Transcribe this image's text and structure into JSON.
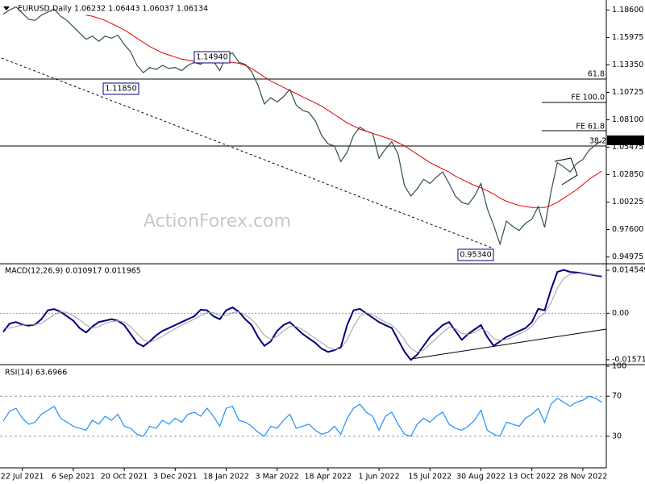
{
  "chart_data": [
    {
      "type": "line",
      "title": "EURUSD,Daily  1.06232 1.06443 1.06037 1.06134",
      "watermark": "ActionForex.com",
      "ylim": [
        0.944,
        1.194
      ],
      "yticks": [
        {
          "value": 1.186,
          "label": "1.18600"
        },
        {
          "value": 1.15975,
          "label": "1.15975"
        },
        {
          "value": 1.1335,
          "label": "1.13350"
        },
        {
          "value": 1.10725,
          "label": "1.10725"
        },
        {
          "value": 1.081,
          "label": "1.08100"
        },
        {
          "value": 1.05475,
          "label": "1.05475"
        },
        {
          "value": 1.0285,
          "label": "1.02850"
        },
        {
          "value": 1.00225,
          "label": "1.00225"
        },
        {
          "value": 0.976,
          "label": "0.97600"
        },
        {
          "value": 0.94975,
          "label": "0.94975"
        }
      ],
      "last_price": 1.06134,
      "annotations": [
        "1.14940",
        "1.11850",
        "0.95340",
        "61.8",
        "FE 100.0",
        "FE 61.8",
        "38.2"
      ],
      "series": [
        {
          "color": "#2f4f4f",
          "values": [
            1.182,
            1.186,
            1.189,
            1.183,
            1.177,
            1.176,
            1.181,
            1.184,
            1.187,
            1.18,
            1.176,
            1.17,
            1.164,
            1.158,
            1.161,
            1.156,
            1.161,
            1.159,
            1.162,
            1.153,
            1.146,
            1.133,
            1.126,
            1.131,
            1.129,
            1.133,
            1.13,
            1.131,
            1.128,
            1.133,
            1.136,
            1.134,
            1.141,
            1.137,
            1.128,
            1.142,
            1.145,
            1.136,
            1.134,
            1.127,
            1.114,
            1.096,
            1.102,
            1.098,
            1.103,
            1.11,
            1.095,
            1.09,
            1.088,
            1.08,
            1.066,
            1.058,
            1.056,
            1.041,
            1.05,
            1.066,
            1.074,
            1.07,
            1.068,
            1.044,
            1.053,
            1.06,
            1.048,
            1.018,
            1.008,
            1.015,
            1.024,
            1.02,
            1.026,
            1.031,
            1.02,
            1.008,
            1.002,
            1.0,
            1.008,
            1.02,
            0.996,
            0.98,
            0.962,
            0.984,
            0.979,
            0.975,
            0.982,
            0.986,
            0.998,
            0.978,
            1.012,
            1.04,
            1.036,
            1.031,
            1.039,
            1.043,
            1.052,
            1.057,
            1.061
          ]
        },
        {
          "color": "#e00000",
          "values": [
            null,
            null,
            null,
            null,
            null,
            null,
            null,
            null,
            null,
            null,
            null,
            null,
            null,
            1.181,
            1.18,
            1.178,
            1.176,
            1.173,
            1.17,
            1.167,
            1.163,
            1.159,
            1.155,
            1.151,
            1.148,
            1.145,
            1.143,
            1.141,
            1.139,
            1.138,
            1.137,
            1.137,
            1.136,
            1.136,
            1.136,
            1.136,
            1.136,
            1.135,
            1.133,
            1.13,
            1.126,
            1.122,
            1.118,
            1.115,
            1.112,
            1.109,
            1.106,
            1.103,
            1.1,
            1.097,
            1.094,
            1.09,
            1.086,
            1.082,
            1.078,
            1.075,
            1.072,
            1.07,
            1.068,
            1.066,
            1.064,
            1.062,
            1.059,
            1.056,
            1.052,
            1.048,
            1.044,
            1.04,
            1.037,
            1.034,
            1.031,
            1.027,
            1.024,
            1.021,
            1.018,
            1.016,
            1.013,
            1.01,
            1.006,
            1.003,
            1.001,
            0.999,
            0.998,
            0.997,
            0.997,
            0.997,
            0.999,
            1.002,
            1.006,
            1.01,
            1.014,
            1.019,
            1.024,
            1.028,
            1.032
          ]
        }
      ]
    },
    {
      "type": "line",
      "title": "MACD(12,26,9) 0.010917 0.011965",
      "ylim": [
        -0.0171,
        0.0162
      ],
      "yticks": [
        0.014549,
        {
          "value": 0,
          "label": "0.00"
        },
        -0.015712
      ],
      "series": [
        {
          "color": "#000080",
          "values": [
            -0.0063,
            -0.0035,
            -0.003,
            -0.0038,
            -0.0042,
            -0.0038,
            -0.002,
            0.001,
            0.0014,
            0.0005,
            -0.001,
            -0.0025,
            -0.005,
            -0.0065,
            -0.0045,
            -0.003,
            -0.0025,
            -0.002,
            -0.0025,
            -0.004,
            -0.007,
            -0.01,
            -0.0112,
            -0.0095,
            -0.0075,
            -0.006,
            -0.005,
            -0.004,
            -0.003,
            -0.002,
            -0.001,
            0.0012,
            0.001,
            -0.001,
            -0.002,
            0.001,
            0.002,
            0.0005,
            -0.002,
            -0.004,
            -0.008,
            -0.011,
            -0.0095,
            -0.006,
            -0.004,
            -0.003,
            -0.005,
            -0.007,
            -0.0085,
            -0.01,
            -0.012,
            -0.0131,
            -0.0125,
            -0.0115,
            -0.004,
            0.001,
            0.0015,
            0.0,
            -0.0015,
            -0.003,
            -0.004,
            -0.005,
            -0.009,
            -0.013,
            -0.0158,
            -0.014,
            -0.011,
            -0.008,
            -0.006,
            -0.004,
            -0.003,
            -0.006,
            -0.009,
            -0.007,
            -0.0055,
            -0.004,
            -0.008,
            -0.011,
            -0.0095,
            -0.008,
            -0.007,
            -0.006,
            -0.005,
            -0.003,
            0.0015,
            0.001,
            0.008,
            0.014,
            0.0147,
            0.014,
            0.0138,
            0.0135,
            0.0132,
            0.0128,
            0.0125
          ]
        },
        {
          "color": "#a0a0a0",
          "values": [
            -0.005,
            -0.005,
            -0.0045,
            -0.004,
            -0.0038,
            -0.0038,
            -0.0034,
            -0.002,
            -0.0005,
            0.0005,
            0.0003,
            -0.0008,
            -0.0022,
            -0.004,
            -0.005,
            -0.0045,
            -0.0035,
            -0.0028,
            -0.0025,
            -0.003,
            -0.0045,
            -0.0068,
            -0.009,
            -0.0098,
            -0.009,
            -0.0078,
            -0.0065,
            -0.0052,
            -0.004,
            -0.003,
            -0.002,
            -0.0008,
            0.0002,
            0.0002,
            -0.0008,
            -0.0008,
            0.0002,
            0.0005,
            -0.0005,
            -0.002,
            -0.0045,
            -0.0075,
            -0.0088,
            -0.0078,
            -0.006,
            -0.0045,
            -0.0045,
            -0.0055,
            -0.007,
            -0.0085,
            -0.01,
            -0.0115,
            -0.0122,
            -0.012,
            -0.009,
            -0.0045,
            -0.001,
            0.0002,
            -0.0005,
            -0.0018,
            -0.003,
            -0.004,
            -0.006,
            -0.009,
            -0.012,
            -0.0132,
            -0.0125,
            -0.0105,
            -0.0085,
            -0.0065,
            -0.0048,
            -0.0052,
            -0.0068,
            -0.0072,
            -0.0065,
            -0.0052,
            -0.0062,
            -0.0085,
            -0.0092,
            -0.0088,
            -0.008,
            -0.007,
            -0.006,
            -0.0045,
            -0.0015,
            0.0,
            0.0035,
            0.0085,
            0.0118,
            0.0132,
            0.0135,
            0.0135,
            0.0133,
            0.013,
            0.0127
          ]
        }
      ]
    },
    {
      "type": "line",
      "title": "RSI(14) 63.6966",
      "ylim": [
        0,
        100
      ],
      "yticks": [
        100,
        70,
        30
      ],
      "grid": true,
      "categories": [
        null,
        null,
        null,
        "22 Jul 2021",
        null,
        null,
        null,
        null,
        null,
        null,
        null,
        "6 Sep 2021",
        null,
        null,
        null,
        null,
        null,
        null,
        null,
        "20 Oct 2021",
        null,
        null,
        null,
        null,
        null,
        null,
        null,
        "3 Dec 2021",
        null,
        null,
        null,
        null,
        null,
        null,
        null,
        "18 Jan 2022",
        null,
        null,
        null,
        null,
        null,
        null,
        null,
        "3 Mar 2022",
        null,
        null,
        null,
        null,
        null,
        null,
        null,
        "18 Apr 2022",
        null,
        null,
        null,
        null,
        null,
        null,
        null,
        "1 Jun 2022",
        null,
        null,
        null,
        null,
        null,
        null,
        null,
        "15 Jul 2022",
        null,
        null,
        null,
        null,
        null,
        null,
        null,
        "30 Aug 2022",
        null,
        null,
        null,
        null,
        null,
        null,
        null,
        "13 Oct 2022",
        null,
        null,
        null,
        null,
        null,
        null,
        null,
        "28 Nov 2022",
        null,
        null,
        null
      ],
      "series": [
        {
          "color": "#1e90ff",
          "values": [
            45,
            55,
            58,
            48,
            42,
            44,
            52,
            56,
            60,
            48,
            44,
            40,
            38,
            36,
            46,
            42,
            50,
            46,
            52,
            40,
            38,
            32,
            30,
            40,
            38,
            46,
            42,
            48,
            44,
            52,
            54,
            50,
            58,
            50,
            40,
            58,
            60,
            46,
            44,
            40,
            34,
            30,
            40,
            38,
            46,
            52,
            38,
            40,
            42,
            36,
            32,
            34,
            40,
            32,
            48,
            58,
            62,
            54,
            50,
            36,
            50,
            54,
            42,
            32,
            30,
            42,
            48,
            44,
            50,
            54,
            42,
            38,
            36,
            40,
            46,
            56,
            36,
            32,
            30,
            44,
            42,
            40,
            48,
            52,
            58,
            44,
            62,
            68,
            64,
            60,
            64,
            66,
            70,
            68,
            64
          ]
        }
      ]
    }
  ]
}
